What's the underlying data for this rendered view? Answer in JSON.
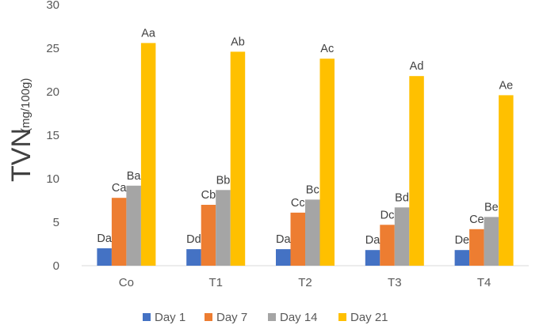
{
  "chart_data": {
    "type": "bar",
    "title": "",
    "xlabel": "",
    "ylabel": "TVN",
    "ylabel_unit": "(mg/100g)",
    "ylim": [
      0,
      30
    ],
    "yticks": [
      0,
      5,
      10,
      15,
      20,
      25,
      30
    ],
    "categories": [
      "Co",
      "T1",
      "T2",
      "T3",
      "T4"
    ],
    "series": [
      {
        "name": "Day 1",
        "color": "#4472C4",
        "values": [
          2.0,
          1.9,
          1.9,
          1.8,
          1.8
        ],
        "labels": [
          "Da",
          "Dd",
          "Da",
          "Da",
          "De"
        ]
      },
      {
        "name": "Day 7",
        "color": "#ED7D31",
        "values": [
          7.8,
          7.0,
          6.1,
          4.7,
          4.2
        ],
        "labels": [
          "Ca",
          "Cb",
          "Cc",
          "Dc",
          "Ce"
        ]
      },
      {
        "name": "Day 14",
        "color": "#A5A5A5",
        "values": [
          9.2,
          8.7,
          7.6,
          6.7,
          5.6
        ],
        "labels": [
          "Ba",
          "Bb",
          "Bc",
          "Bd",
          "Be"
        ]
      },
      {
        "name": "Day 21",
        "color": "#FFC000",
        "values": [
          25.6,
          24.6,
          23.8,
          21.8,
          19.6
        ],
        "labels": [
          "Aa",
          "Ab",
          "Ac",
          "Ad",
          "Ae"
        ]
      }
    ],
    "legend": "bottom",
    "grid": false
  }
}
